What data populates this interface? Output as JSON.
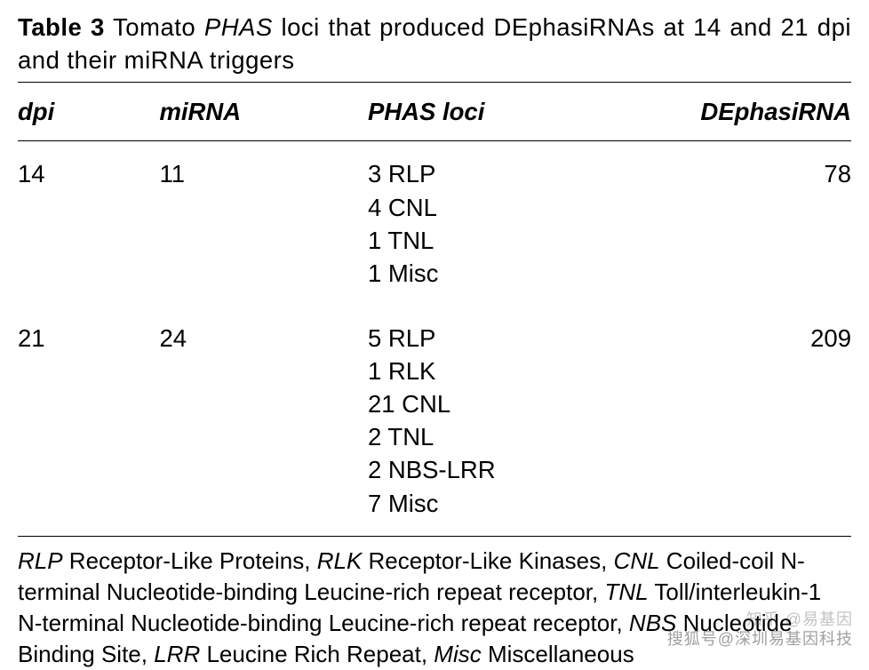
{
  "caption": {
    "label": "Table 3",
    "before_ital": "Tomato ",
    "ital": "PHAS",
    "after_ital": " loci that produced DEphasiRNAs at 14 and 21 dpi and their miRNA triggers"
  },
  "columns": {
    "c0": "dpi",
    "c1": "miRNA",
    "c2": "PHAS loci",
    "c3": "DEphasiRNA"
  },
  "rows": [
    {
      "dpi": "14",
      "mirna": "11",
      "phas": [
        "3 RLP",
        "4 CNL",
        "1 TNL",
        "1 Misc"
      ],
      "de": "78"
    },
    {
      "dpi": "21",
      "mirna": "24",
      "phas": [
        "5 RLP",
        "1 RLK",
        "21 CNL",
        "2 TNL",
        "2 NBS-LRR",
        "7 Misc"
      ],
      "de": "209"
    }
  ],
  "footnote": {
    "pieces": [
      {
        "it": "RLP"
      },
      {
        "t": " Receptor-Like Proteins, "
      },
      {
        "it": "RLK"
      },
      {
        "t": " Receptor-Like Kinases, "
      },
      {
        "it": "CNL"
      },
      {
        "t": " Coiled-coil N-terminal Nucleotide-binding Leucine-rich repeat receptor, "
      },
      {
        "it": "TNL"
      },
      {
        "t": " Toll/interleukin-1 N-terminal Nucleotide-binding Leucine-rich repeat receptor, "
      },
      {
        "it": "NBS"
      },
      {
        "t": " Nucleotide Binding Site, "
      },
      {
        "it": "LRR"
      },
      {
        "t": " Leucine Rich Repeat, "
      },
      {
        "it": "Misc"
      },
      {
        "t": " Miscellaneous"
      }
    ]
  },
  "watermark": {
    "line1": "知乎 @易基因",
    "line2": "搜狐号@深圳易基因科技"
  },
  "colwidths": [
    "17%",
    "25%",
    "38%",
    "20%"
  ]
}
